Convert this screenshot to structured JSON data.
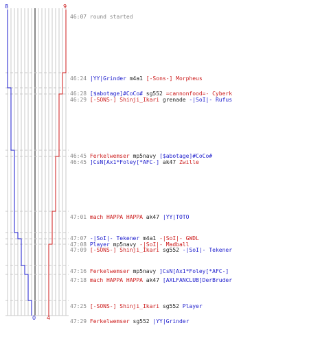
{
  "colors": {
    "blue": "#1a1acc",
    "red": "#cc1a1a",
    "grid": "#c8c8c8",
    "grid_dark": "#888888",
    "timestamp": "#888888",
    "mono": "#222222"
  },
  "scores": {
    "blue_top": "8",
    "red_top": "9",
    "blue_bottom": "0",
    "red_bottom": "4"
  },
  "events": [
    {
      "time": "46:07",
      "segments": [
        {
          "text": "round started",
          "color": "#888888"
        }
      ]
    },
    {
      "time": "46:24",
      "segments": [
        {
          "text": "|YY|Grinder",
          "color": "#1a1acc"
        },
        {
          "text": " m4a1 ",
          "color": "#222222"
        },
        {
          "text": "[-Sons-] Morpheus",
          "color": "#cc1a1a"
        }
      ]
    },
    {
      "time": "46:28",
      "segments": [
        {
          "text": "[$abotage]#CoCo#",
          "color": "#1a1acc"
        },
        {
          "text": " sg552 ",
          "color": "#222222"
        },
        {
          "text": "=cannonfood=- Cyberk",
          "color": "#cc1a1a"
        }
      ]
    },
    {
      "time": "46:29",
      "segments": [
        {
          "text": "[-SONS-] Shinji_Ikari",
          "color": "#cc1a1a"
        },
        {
          "text": " grenade ",
          "color": "#222222"
        },
        {
          "text": "-|SoI|- Rufus",
          "color": "#1a1acc"
        }
      ]
    },
    {
      "time": "46:45",
      "segments": [
        {
          "text": "Ferkelwemser",
          "color": "#cc1a1a"
        },
        {
          "text": " mp5navy ",
          "color": "#222222"
        },
        {
          "text": "[$abotage]#CoCo#",
          "color": "#1a1acc"
        }
      ]
    },
    {
      "time": "46:45",
      "segments": [
        {
          "text": "]CsN[Ax1*Foley[*AFC-]",
          "color": "#1a1acc"
        },
        {
          "text": " ak47 ",
          "color": "#222222"
        },
        {
          "text": "Zwille",
          "color": "#cc1a1a"
        }
      ]
    },
    {
      "time": "47:01",
      "segments": [
        {
          "text": "mach HAPPA HAPPA",
          "color": "#cc1a1a"
        },
        {
          "text": " ak47 ",
          "color": "#222222"
        },
        {
          "text": "|YY|TOTO",
          "color": "#1a1acc"
        }
      ]
    },
    {
      "time": "47:07",
      "segments": [
        {
          "text": "-|SoI|- Tekener",
          "color": "#1a1acc"
        },
        {
          "text": " m4a1 ",
          "color": "#222222"
        },
        {
          "text": "-|SoI|- GWDL",
          "color": "#cc1a1a"
        }
      ]
    },
    {
      "time": "47:08",
      "segments": [
        {
          "text": "Player",
          "color": "#1a1acc"
        },
        {
          "text": " mp5navy ",
          "color": "#222222"
        },
        {
          "text": "-|SoI|- Madball",
          "color": "#cc1a1a"
        }
      ]
    },
    {
      "time": "47:09",
      "segments": [
        {
          "text": "[-SONS-] Shinji_Ikari",
          "color": "#cc1a1a"
        },
        {
          "text": " sg552 ",
          "color": "#222222"
        },
        {
          "text": "-|SoI|- Tekener",
          "color": "#1a1acc"
        }
      ]
    },
    {
      "time": "47:16",
      "segments": [
        {
          "text": "Ferkelwemser",
          "color": "#cc1a1a"
        },
        {
          "text": " mp5navy ",
          "color": "#222222"
        },
        {
          "text": "]CsN[Ax1*Foley[*AFC-]",
          "color": "#1a1acc"
        }
      ]
    },
    {
      "time": "47:18",
      "segments": [
        {
          "text": "mach HAPPA HAPPA",
          "color": "#cc1a1a"
        },
        {
          "text": " ak47 ",
          "color": "#222222"
        },
        {
          "text": "[AXLFANCLUB]DerBruder",
          "color": "#1a1acc"
        }
      ]
    },
    {
      "time": "47:25",
      "segments": [
        {
          "text": "[-SONS-] Shinji_Ikari",
          "color": "#cc1a1a"
        },
        {
          "text": " sg552 ",
          "color": "#222222"
        },
        {
          "text": "Player",
          "color": "#1a1acc"
        }
      ]
    },
    {
      "time": "47:29",
      "segments": [
        {
          "text": "Ferkelwemser",
          "color": "#cc1a1a"
        },
        {
          "text": " sg552 ",
          "color": "#222222"
        },
        {
          "text": "|YY|Grinder",
          "color": "#1a1acc"
        }
      ]
    }
  ]
}
